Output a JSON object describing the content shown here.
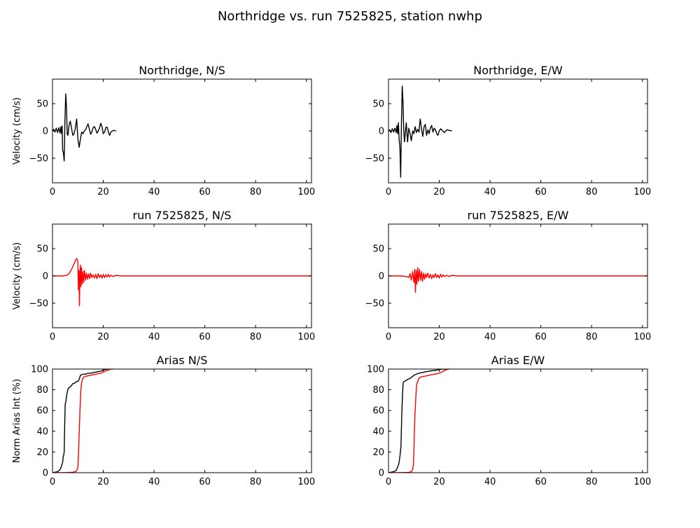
{
  "figure": {
    "title": "Northridge vs. run 7525825, station nwhp"
  },
  "colors": {
    "recorded": "#000000",
    "simulated": "#ff0000",
    "axes": "#000000",
    "background": "#ffffff"
  },
  "chart_data": [
    {
      "type": "line",
      "title": "Northridge, N/S",
      "xlabel": "",
      "ylabel": "Velocity (cm/s)",
      "xlim": [
        0,
        102
      ],
      "ylim": [
        -95,
        95
      ],
      "xticks": [
        0,
        20,
        40,
        60,
        80,
        100
      ],
      "yticks": [
        -50,
        0,
        50
      ],
      "grid": false,
      "series": [
        {
          "color": "#000000",
          "x": [
            0,
            0.5,
            1,
            1.5,
            2,
            2.5,
            3,
            3.3,
            3.6,
            3.8,
            4,
            4.3,
            4.6,
            4.9,
            5.2,
            5.5,
            5.8,
            6.1,
            6.5,
            7,
            7.5,
            8,
            8.5,
            9,
            9.5,
            10,
            10.5,
            11,
            11.5,
            12,
            12.5,
            13,
            13.5,
            14,
            14.5,
            15,
            15.5,
            16,
            16.5,
            17,
            17.5,
            18,
            18.5,
            19,
            19.5,
            20,
            20.5,
            21,
            21.5,
            22,
            22.5,
            23,
            24,
            25
          ],
          "y": [
            0,
            3,
            -2,
            5,
            -3,
            6,
            -4,
            8,
            -5,
            9,
            -35,
            -40,
            -55,
            20,
            68,
            45,
            -5,
            -8,
            10,
            18,
            5,
            -8,
            -5,
            5,
            22,
            -15,
            -30,
            -15,
            -2,
            -5,
            0,
            2,
            8,
            13,
            4,
            -6,
            -2,
            6,
            8,
            3,
            -4,
            0,
            5,
            14,
            8,
            -5,
            -2,
            6,
            7,
            -2,
            -8,
            -2,
            1,
            0
          ]
        }
      ]
    },
    {
      "type": "line",
      "title": "Northridge, E/W",
      "xlabel": "",
      "ylabel": "",
      "xlim": [
        0,
        102
      ],
      "ylim": [
        -95,
        95
      ],
      "xticks": [
        0,
        20,
        40,
        60,
        80,
        100
      ],
      "yticks": [
        -50,
        0,
        50
      ],
      "grid": false,
      "series": [
        {
          "color": "#000000",
          "x": [
            0,
            0.5,
            1,
            1.5,
            2,
            2.5,
            3,
            3.3,
            3.6,
            3.9,
            4.2,
            4.5,
            4.8,
            5.1,
            5.4,
            5.7,
            6,
            6.3,
            6.6,
            7,
            7.5,
            8,
            8.5,
            9,
            9.5,
            10,
            10.5,
            11,
            11.5,
            12,
            12.5,
            13,
            13.5,
            14,
            14.5,
            15,
            15.5,
            16,
            16.5,
            17,
            17.5,
            18,
            18.5,
            19,
            19.5,
            20,
            20.5,
            21,
            22,
            23,
            24,
            25
          ],
          "y": [
            0,
            2,
            -3,
            4,
            -2,
            5,
            -3,
            10,
            -5,
            15,
            -15,
            -30,
            -85,
            15,
            82,
            55,
            0,
            -20,
            -5,
            15,
            -20,
            5,
            -5,
            -18,
            0,
            -5,
            8,
            -3,
            3,
            -2,
            22,
            3,
            -10,
            8,
            12,
            -8,
            2,
            -5,
            6,
            10,
            -2,
            5,
            2,
            -5,
            -8,
            0,
            4,
            2,
            -3,
            2,
            1,
            0
          ]
        }
      ]
    },
    {
      "type": "line",
      "title": "run 7525825, N/S",
      "xlabel": "",
      "ylabel": "Velocity (cm/s)",
      "xlim": [
        0,
        102
      ],
      "ylim": [
        -95,
        95
      ],
      "xticks": [
        0,
        20,
        40,
        60,
        80,
        100
      ],
      "yticks": [
        -50,
        0,
        50
      ],
      "grid": false,
      "series": [
        {
          "color": "#ff0000",
          "x": [
            0,
            4,
            5.5,
            6.5,
            7.5,
            8.5,
            9.2,
            9.6,
            10,
            10.2,
            10.4,
            10.6,
            10.8,
            11,
            11.2,
            11.4,
            11.7,
            12,
            12.3,
            12.6,
            13,
            13.4,
            13.8,
            14.2,
            14.6,
            15,
            15.5,
            16,
            16.5,
            17,
            17.5,
            18,
            18.5,
            19,
            19.5,
            20,
            20.5,
            21,
            21.5,
            22,
            22.5,
            23,
            24,
            25,
            27,
            30,
            40,
            60,
            80,
            102
          ],
          "y": [
            0,
            0,
            1,
            4,
            12,
            22,
            30,
            32,
            25,
            -25,
            10,
            -55,
            5,
            20,
            -20,
            15,
            -15,
            8,
            -12,
            10,
            -8,
            5,
            -6,
            4,
            -5,
            5,
            -3,
            2,
            -4,
            3,
            -5,
            4,
            -3,
            2,
            -4,
            3,
            -3,
            2,
            -2,
            3,
            -2,
            1,
            -1,
            1,
            0,
            0,
            0,
            0,
            0,
            0
          ]
        }
      ]
    },
    {
      "type": "line",
      "title": "run 7525825, E/W",
      "xlabel": "",
      "ylabel": "",
      "xlim": [
        0,
        102
      ],
      "ylim": [
        -95,
        95
      ],
      "xticks": [
        0,
        20,
        40,
        60,
        80,
        100
      ],
      "yticks": [
        -50,
        0,
        50
      ],
      "grid": false,
      "series": [
        {
          "color": "#ff0000",
          "x": [
            0,
            5,
            7,
            8,
            8.5,
            9,
            9.5,
            10,
            10.3,
            10.6,
            10.9,
            11.2,
            11.5,
            11.8,
            12.2,
            12.6,
            13,
            13.4,
            13.8,
            14.2,
            14.6,
            15,
            15.5,
            16,
            16.5,
            17,
            17.5,
            18,
            18.5,
            19,
            19.5,
            20,
            20.5,
            21,
            21.5,
            22,
            23,
            24,
            25,
            27,
            30,
            40,
            60,
            80,
            102
          ],
          "y": [
            0,
            0,
            -1,
            -3,
            4,
            -8,
            8,
            -12,
            12,
            -30,
            10,
            -15,
            15,
            -10,
            12,
            -8,
            8,
            -10,
            5,
            -6,
            4,
            -3,
            5,
            -4,
            3,
            -5,
            2,
            -3,
            4,
            -3,
            2,
            -4,
            3,
            -2,
            2,
            -1,
            1,
            -1,
            1,
            0,
            0,
            0,
            0,
            0,
            0
          ]
        }
      ]
    },
    {
      "type": "line",
      "title": "Arias N/S",
      "xlabel": "",
      "ylabel": "Norm Arias Int (%)",
      "xlim": [
        0,
        102
      ],
      "ylim": [
        0,
        100
      ],
      "xticks": [
        0,
        20,
        40,
        60,
        80,
        100
      ],
      "yticks": [
        0,
        20,
        40,
        60,
        80,
        100
      ],
      "grid": false,
      "series": [
        {
          "color": "#000000",
          "x": [
            0,
            2,
            3,
            3.5,
            4,
            4.2,
            4.4,
            4.6,
            4.8,
            5,
            5.2,
            5.6,
            6,
            6.5,
            7,
            7.5,
            8,
            8.5,
            9,
            9.5,
            10,
            10.5,
            11,
            12,
            13,
            14,
            15,
            16,
            17,
            18,
            19,
            20,
            21,
            22,
            23
          ],
          "y": [
            0,
            1,
            3,
            6,
            10,
            15,
            17,
            20,
            45,
            66,
            68,
            75,
            80,
            82,
            83,
            84,
            86,
            86,
            87,
            88,
            88,
            90,
            94,
            95,
            95,
            96,
            96,
            96.5,
            97,
            97.5,
            98,
            99,
            99.5,
            100,
            100
          ]
        },
        {
          "color": "#ff0000",
          "x": [
            0,
            5,
            8,
            9,
            9.5,
            10,
            10.2,
            10.4,
            10.6,
            10.8,
            11,
            11.2,
            11.4,
            11.6,
            11.8,
            12,
            12.3,
            12.6,
            13,
            14,
            15,
            16,
            17,
            18,
            19,
            20,
            21,
            22,
            23,
            24
          ],
          "y": [
            0,
            0,
            0.5,
            1,
            2,
            5,
            15,
            30,
            45,
            60,
            70,
            80,
            86,
            88,
            90,
            91,
            92,
            92.5,
            93,
            93.5,
            94,
            94.5,
            95,
            95.5,
            96,
            97,
            98,
            99,
            100,
            100
          ]
        }
      ]
    },
    {
      "type": "line",
      "title": "Arias E/W",
      "xlabel": "",
      "ylabel": "",
      "xlim": [
        0,
        102
      ],
      "ylim": [
        0,
        100
      ],
      "xticks": [
        0,
        20,
        40,
        60,
        80,
        100
      ],
      "yticks": [
        0,
        20,
        40,
        60,
        80,
        100
      ],
      "grid": false,
      "series": [
        {
          "color": "#000000",
          "x": [
            0,
            2,
            3,
            3.5,
            4,
            4.3,
            4.6,
            4.9,
            5.2,
            5.5,
            5.8,
            6.2,
            6.6,
            7,
            7.5,
            8,
            8.5,
            9,
            9.5,
            10,
            11,
            12,
            13,
            14,
            15,
            16,
            17,
            18,
            19,
            20,
            21,
            22,
            23
          ],
          "y": [
            0,
            1,
            2,
            5,
            8,
            12,
            18,
            25,
            55,
            75,
            87,
            88,
            88.5,
            89,
            90,
            90.5,
            91,
            92,
            93,
            94,
            95,
            96,
            96.5,
            97,
            97.5,
            98,
            98.3,
            98.6,
            99,
            99.5,
            100,
            100,
            100
          ]
        },
        {
          "color": "#ff0000",
          "x": [
            0,
            5,
            8,
            9,
            9.5,
            9.8,
            10,
            10.2,
            10.4,
            10.6,
            10.8,
            11,
            11.2,
            11.5,
            11.8,
            12,
            12.5,
            13,
            14,
            15,
            16,
            17,
            18,
            19,
            20,
            21,
            22,
            23,
            24
          ],
          "y": [
            0,
            0,
            0.3,
            1,
            3,
            8,
            20,
            40,
            55,
            65,
            75,
            82,
            86,
            88,
            90,
            91,
            92,
            92.5,
            93,
            93.5,
            94,
            94.5,
            95,
            95.5,
            96,
            97,
            98.5,
            99.5,
            100
          ]
        }
      ]
    }
  ]
}
